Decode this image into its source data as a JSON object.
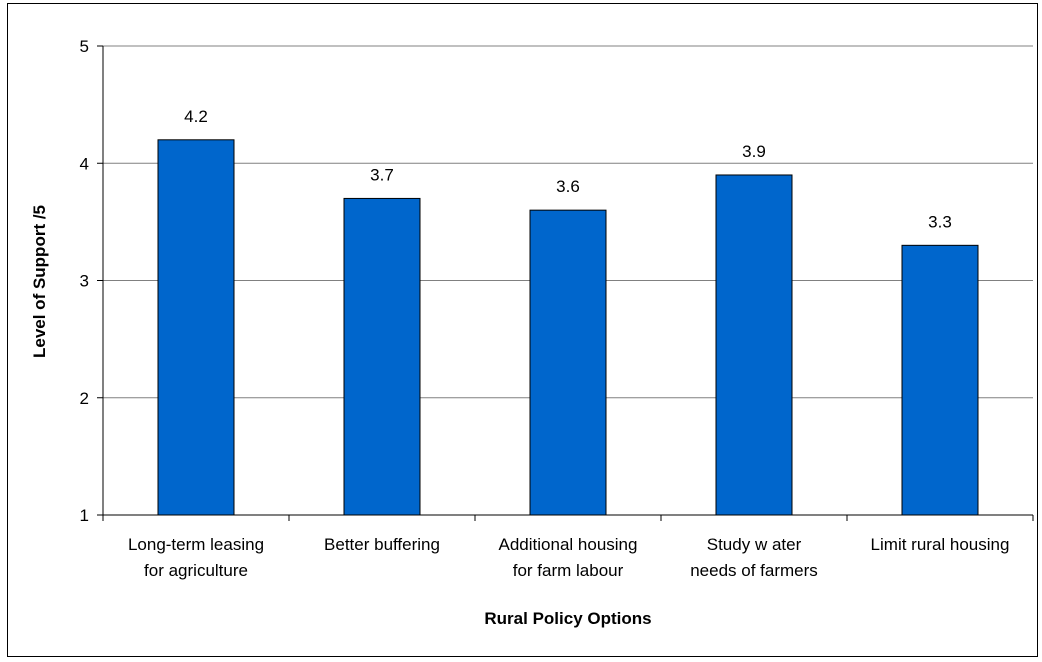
{
  "chart_data": {
    "type": "bar",
    "title": "",
    "xlabel": "Rural Policy Options",
    "ylabel": "Level of Support /5",
    "categories": [
      [
        "Long-term leasing",
        "for agriculture"
      ],
      [
        "Better buffering"
      ],
      [
        "Additional housing",
        "for farm labour"
      ],
      [
        "Study w ater",
        "needs of farmers"
      ],
      [
        "Limit rural housing"
      ]
    ],
    "values": [
      4.2,
      3.7,
      3.6,
      3.9,
      3.3
    ],
    "data_labels": [
      "4.2",
      "3.7",
      "3.6",
      "3.9",
      "3.3"
    ],
    "ylim": [
      1,
      5
    ],
    "yticks": [
      1,
      2,
      3,
      4,
      5
    ],
    "grid": "horizontal major gridlines",
    "legend": "none",
    "bar_color": "#0066CC",
    "bar_edge_color": "#000000"
  }
}
